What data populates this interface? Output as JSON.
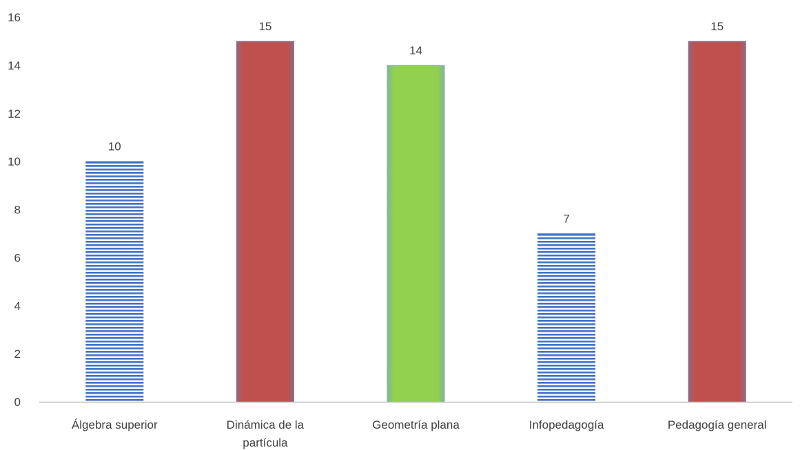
{
  "chart_data": {
    "type": "bar",
    "categories": [
      [
        "Álgebra superior"
      ],
      [
        "Dinámica de la",
        "partícula"
      ],
      [
        "Geometría plana"
      ],
      [
        "Infopedagogía"
      ],
      [
        "Pedagogía general"
      ]
    ],
    "values": [
      10,
      15,
      14,
      7,
      15
    ],
    "data_labels": [
      "10",
      "15",
      "14",
      "7",
      "15"
    ],
    "bar_styles": [
      "striped-blue",
      "solid-red",
      "solid-green",
      "striped-blue",
      "solid-red"
    ],
    "ylim": [
      0,
      16
    ],
    "yticks": [
      0,
      2,
      4,
      6,
      8,
      10,
      12,
      14,
      16
    ],
    "title": "",
    "xlabel": "",
    "ylabel": "",
    "grid": false,
    "legend": "none",
    "colors": {
      "striped-blue": "#4472c4",
      "solid-red": "#c0504d",
      "solid-green": "#92d050",
      "axis": "#bfbfbf",
      "text": "#404040"
    }
  }
}
